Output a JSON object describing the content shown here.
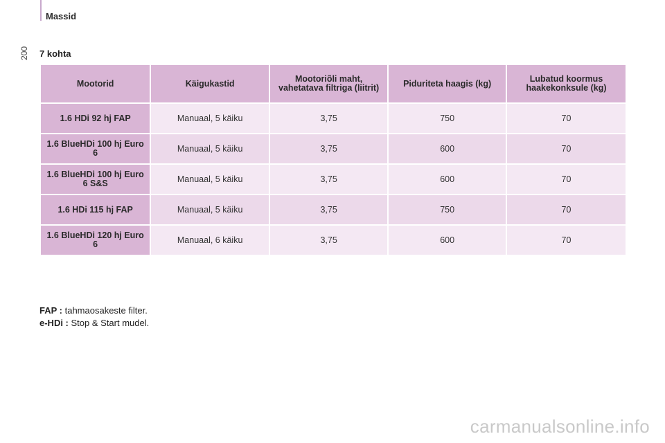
{
  "header": {
    "section": "Massid",
    "page_number": "200"
  },
  "subheading": "7 kohta",
  "table": {
    "columns": [
      "Mootorid",
      "Käigukastid",
      "Mootoriõli maht, vahetatava filtriga (liitrit)",
      "Piduriteta haagis (kg)",
      "Lubatud koormus haakekonksule (kg)"
    ],
    "rows": [
      {
        "engine": "1.6 HDi 92 hj FAP",
        "gearbox": "Manuaal, 5 käiku",
        "oil": "3,75",
        "trailer": "750",
        "towbar": "70"
      },
      {
        "engine": "1.6 BlueHDi 100 hj Euro 6",
        "gearbox": "Manuaal, 5 käiku",
        "oil": "3,75",
        "trailer": "600",
        "towbar": "70"
      },
      {
        "engine": "1.6 BlueHDi 100 hj Euro 6 S&S",
        "gearbox": "Manuaal, 5 käiku",
        "oil": "3,75",
        "trailer": "600",
        "towbar": "70"
      },
      {
        "engine": "1.6 HDi 115 hj FAP",
        "gearbox": "Manuaal, 5 käiku",
        "oil": "3,75",
        "trailer": "750",
        "towbar": "70"
      },
      {
        "engine": "1.6 BlueHDi 120 hj Euro 6",
        "gearbox": "Manuaal, 6 käiku",
        "oil": "3,75",
        "trailer": "600",
        "towbar": "70"
      }
    ]
  },
  "notes": [
    {
      "term": "FAP :",
      "text": " tahmaosakeste filter."
    },
    {
      "term": "e-HDi :",
      "text": " Stop & Start mudel."
    }
  ],
  "watermark": "carmanualsonline.info",
  "colors": {
    "header_bg": "#d9b5d5",
    "row_light": "#f4e8f3",
    "row_dark": "#ecd9ea"
  }
}
